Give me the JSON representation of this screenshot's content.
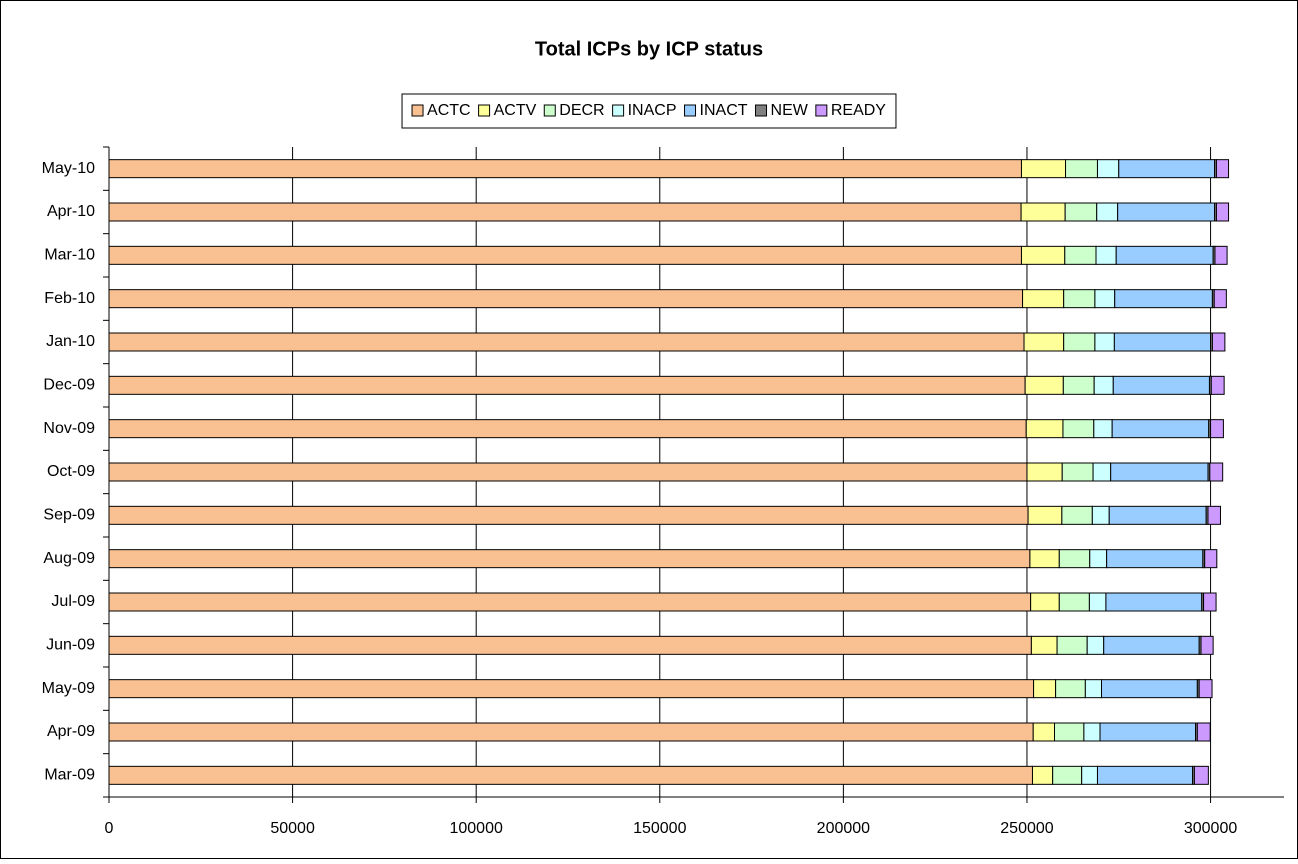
{
  "chart_data": {
    "type": "stacked_barh",
    "title": "Total ICPs by ICP status",
    "categories": [
      "Mar-09",
      "Apr-09",
      "May-09",
      "Jun-09",
      "Jul-09",
      "Aug-09",
      "Sep-09",
      "Oct-09",
      "Nov-09",
      "Dec-09",
      "Jan-10",
      "Feb-10",
      "Mar-10",
      "Apr-10",
      "May-10"
    ],
    "series": [
      {
        "name": "ACTC",
        "color": "#f9c092",
        "values": [
          251500,
          251700,
          251800,
          251200,
          251000,
          250800,
          250300,
          250000,
          249800,
          249500,
          249200,
          248800,
          248500,
          248400,
          248500
        ]
      },
      {
        "name": "ACTV",
        "color": "#ffff99",
        "values": [
          5500,
          5800,
          6000,
          7000,
          7800,
          8000,
          9200,
          9600,
          10000,
          10400,
          10800,
          11200,
          11800,
          12000,
          12000
        ]
      },
      {
        "name": "DECR",
        "color": "#ccffcc",
        "values": [
          7900,
          8000,
          8100,
          8200,
          8200,
          8300,
          8300,
          8400,
          8400,
          8400,
          8500,
          8500,
          8500,
          8600,
          8700
        ]
      },
      {
        "name": "INACP",
        "color": "#ccffff",
        "values": [
          4300,
          4400,
          4400,
          4500,
          4500,
          4600,
          4600,
          4800,
          5000,
          5200,
          5300,
          5400,
          5500,
          5700,
          5800
        ]
      },
      {
        "name": "INACT",
        "color": "#99ccff",
        "values": [
          25900,
          26000,
          26100,
          26000,
          26100,
          26200,
          26400,
          26500,
          26300,
          26200,
          26200,
          26600,
          26400,
          26400,
          26100
        ]
      },
      {
        "name": "NEW",
        "color": "#808080",
        "values": [
          500,
          500,
          500,
          500,
          500,
          500,
          500,
          500,
          500,
          500,
          500,
          500,
          500,
          500,
          500
        ]
      },
      {
        "name": "READY",
        "color": "#cc99ff",
        "values": [
          3800,
          3500,
          3500,
          3300,
          3400,
          3300,
          3400,
          3500,
          3500,
          3500,
          3400,
          3300,
          3300,
          3300,
          3300
        ]
      }
    ],
    "xlim": [
      0,
      320000
    ],
    "xticks": [
      0,
      50000,
      100000,
      150000,
      200000,
      250000,
      300000
    ],
    "grid": true
  }
}
